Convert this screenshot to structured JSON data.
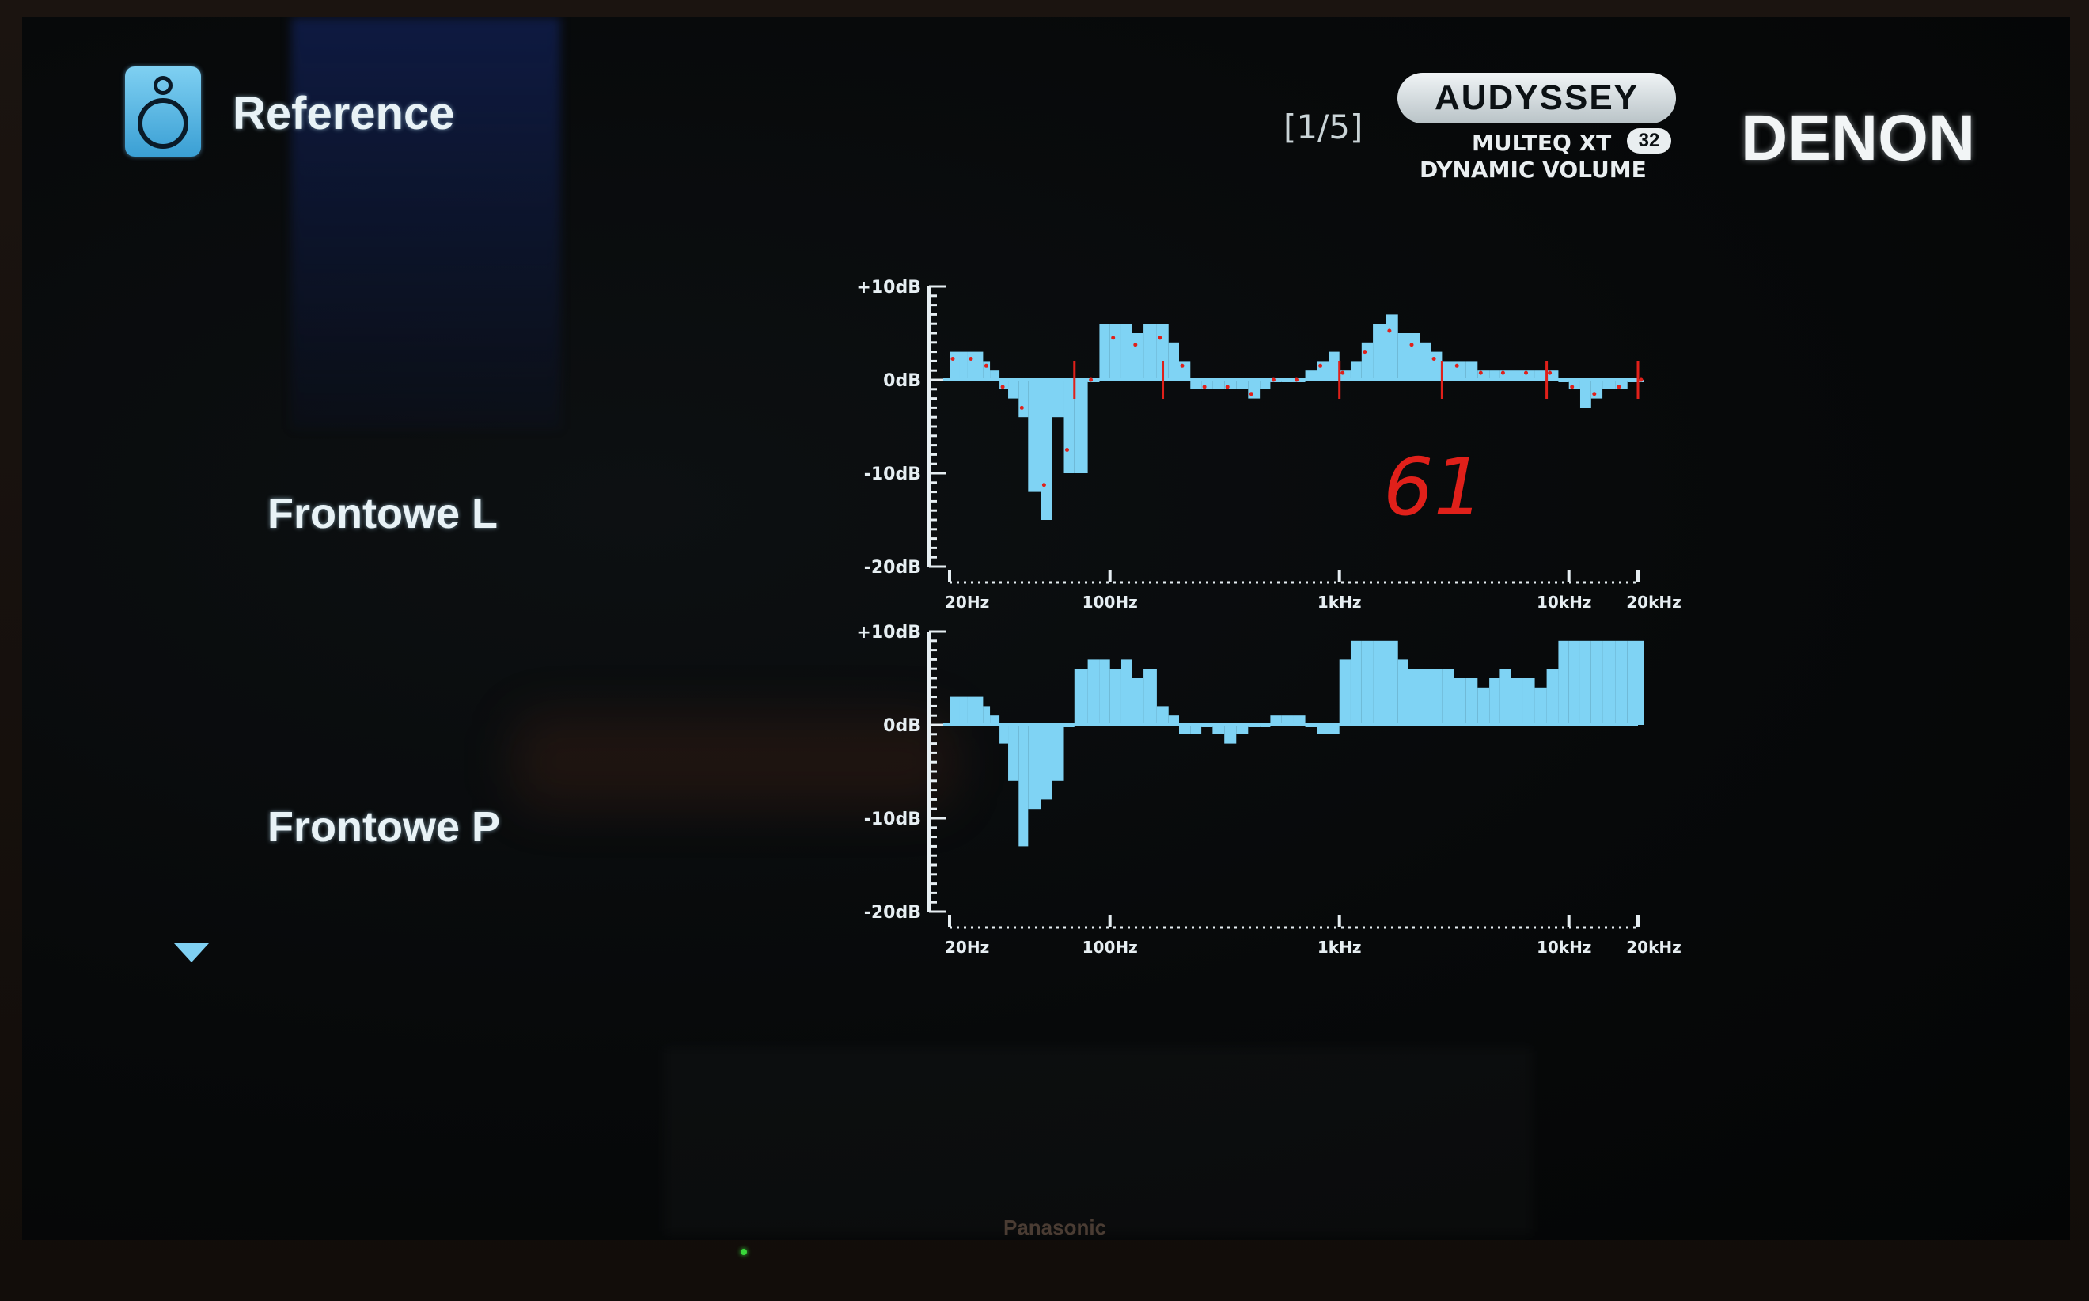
{
  "header": {
    "title": "Reference",
    "icon": "speaker-icon",
    "page_indicator": "[1/5]"
  },
  "branding": {
    "audyssey": "AUDYSSEY",
    "multeq": "MULTEQ XT",
    "multeq_badge": "32",
    "dynamic_volume": "DYNAMIC VOLUME",
    "denon": "DENON",
    "tv_brand": "Panasonic"
  },
  "annotation": "61",
  "colors": {
    "bars": "#7fd3f4",
    "axis": "#e6eef2",
    "annotation": "#e0201a"
  },
  "channels": [
    {
      "label": "Frontowe L"
    },
    {
      "label": "Frontowe P"
    }
  ],
  "chart_data": [
    {
      "type": "bar",
      "ylabel_ticks": [
        "+10dB",
        "0dB",
        "-10dB",
        "-20dB"
      ],
      "ylim": [
        -20,
        10
      ],
      "xscale": "log",
      "xlim": [
        20,
        20000
      ],
      "xtick_labels": [
        "20Hz",
        "100Hz",
        "1kHz",
        "10kHz",
        "20kHz"
      ],
      "x": [
        20,
        22,
        24,
        26,
        28,
        30,
        33,
        36,
        40,
        44,
        50,
        56,
        63,
        70,
        80,
        90,
        100,
        112,
        125,
        140,
        160,
        180,
        200,
        224,
        250,
        280,
        315,
        355,
        400,
        450,
        500,
        560,
        630,
        710,
        800,
        900,
        1000,
        1120,
        1250,
        1400,
        1600,
        1800,
        2000,
        2240,
        2500,
        2800,
        3150,
        3550,
        4000,
        4500,
        5000,
        5600,
        6300,
        7100,
        8000,
        9000,
        10000,
        11200,
        12500,
        14000,
        16000,
        18000,
        20000
      ],
      "values": [
        3,
        3,
        3,
        3,
        2,
        1,
        -1,
        -2,
        -4,
        -12,
        -15,
        -4,
        -10,
        -10,
        0,
        6,
        6,
        6,
        5,
        6,
        6,
        4,
        2,
        -1,
        -1,
        -1,
        -1,
        -1,
        -2,
        -1,
        0,
        0,
        0,
        1,
        2,
        3,
        1,
        2,
        4,
        6,
        7,
        5,
        5,
        4,
        3,
        2,
        2,
        2,
        1,
        1,
        1,
        1,
        1,
        1,
        1,
        0,
        -1,
        -3,
        -2,
        -1,
        -1,
        0,
        0
      ],
      "target_curve_markers": true
    },
    {
      "type": "bar",
      "ylabel_ticks": [
        "+10dB",
        "0dB",
        "-10dB",
        "-20dB"
      ],
      "ylim": [
        -20,
        10
      ],
      "xscale": "log",
      "xlim": [
        20,
        20000
      ],
      "xtick_labels": [
        "20Hz",
        "100Hz",
        "1kHz",
        "10kHz",
        "20kHz"
      ],
      "x": [
        20,
        22,
        24,
        26,
        28,
        30,
        33,
        36,
        40,
        44,
        50,
        56,
        63,
        70,
        80,
        90,
        100,
        112,
        125,
        140,
        160,
        180,
        200,
        224,
        250,
        280,
        315,
        355,
        400,
        450,
        500,
        560,
        630,
        710,
        800,
        900,
        1000,
        1120,
        1250,
        1400,
        1600,
        1800,
        2000,
        2240,
        2500,
        2800,
        3150,
        3550,
        4000,
        4500,
        5000,
        5600,
        6300,
        7100,
        8000,
        9000,
        10000,
        11200,
        12500,
        14000,
        16000,
        18000,
        20000
      ],
      "values": [
        3,
        3,
        3,
        3,
        2,
        1,
        -2,
        -6,
        -13,
        -9,
        -8,
        -6,
        0,
        6,
        7,
        7,
        6,
        7,
        5,
        6,
        2,
        1,
        -1,
        -1,
        0,
        -1,
        -2,
        -1,
        0,
        0,
        1,
        1,
        1,
        0,
        -1,
        -1,
        7,
        9,
        9,
        9,
        9,
        7,
        6,
        6,
        6,
        6,
        5,
        5,
        4,
        5,
        6,
        5,
        5,
        4,
        6,
        9,
        9,
        9,
        9,
        9,
        9,
        9,
        9
      ],
      "target_curve_markers": false
    }
  ]
}
